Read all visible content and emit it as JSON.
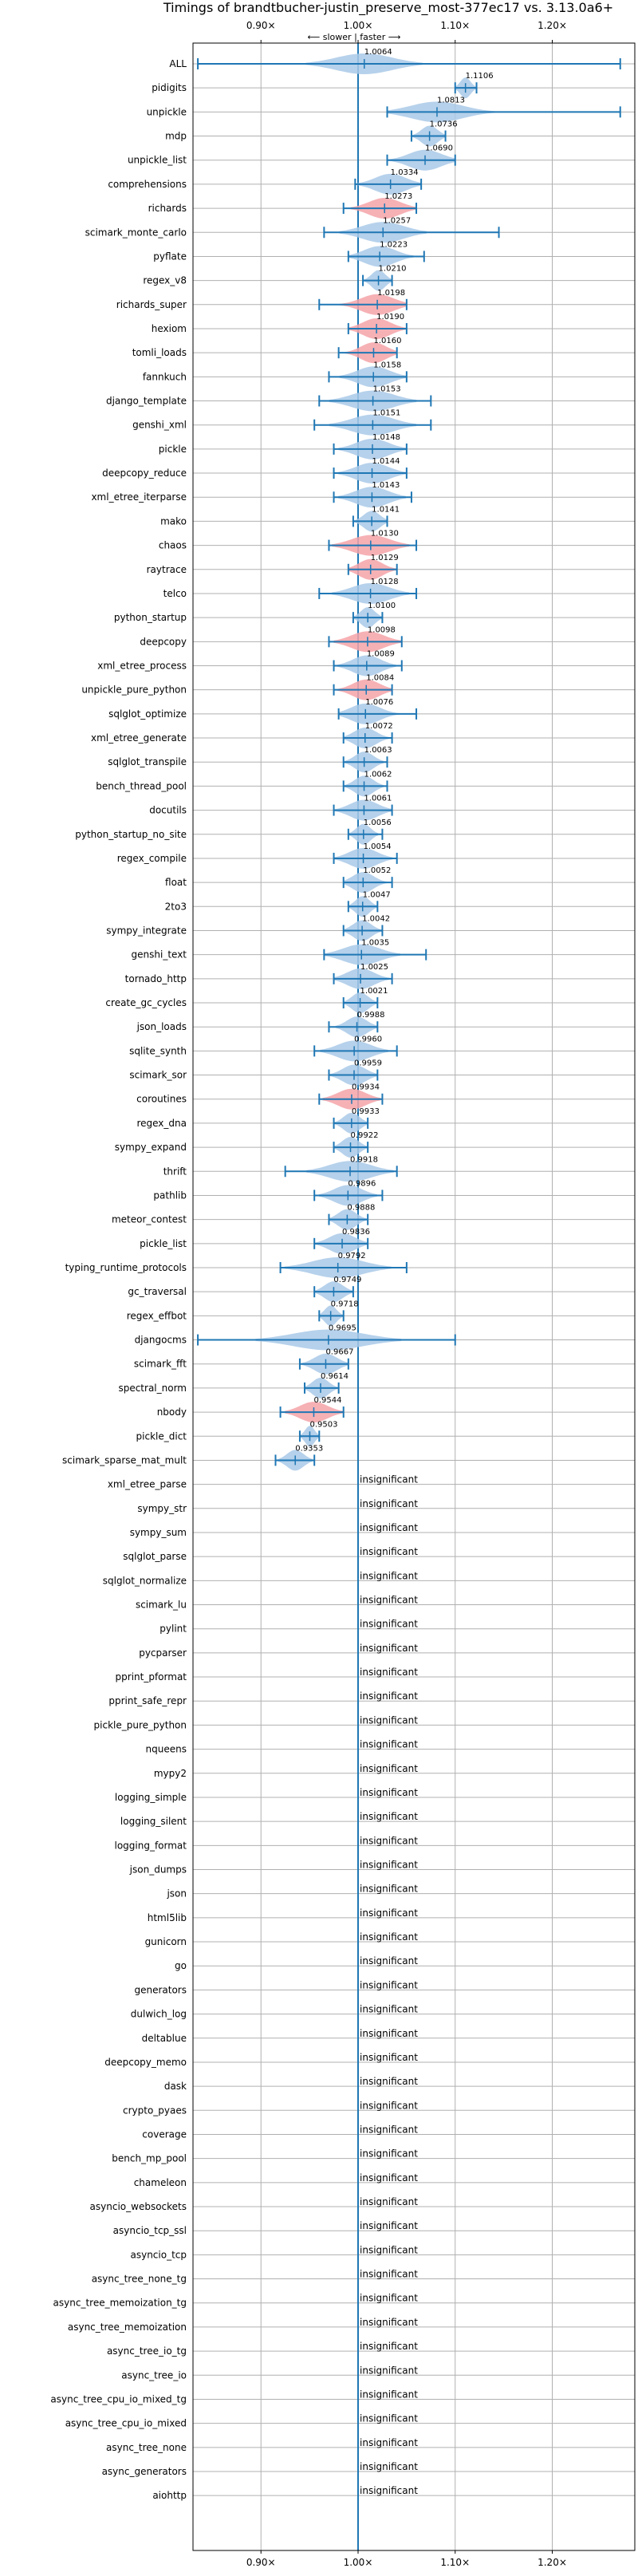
{
  "chart_data": {
    "type": "violin",
    "title": "Timings of brandtbucher-justin_preserve_most-377ec17 vs. 3.13.0a6+",
    "subtitle": "⟵ slower | faster ⟶",
    "xlim": [
      0.83,
      1.285
    ],
    "xticks": [
      {
        "value": 0.9,
        "label": "0.90×"
      },
      {
        "value": 1.0,
        "label": "1.00×"
      },
      {
        "value": 1.1,
        "label": "1.10×"
      },
      {
        "value": 1.2,
        "label": "1.20×"
      }
    ],
    "grid": true,
    "reference_line": 1.0,
    "insignificant_text": "insignificant",
    "colors": {
      "faster": "#a9c9e8",
      "slower": "#f4a3a8",
      "whisker": "#1f77b4",
      "grid": "#b0b0b0"
    },
    "benchmarks": [
      {
        "name": "ALL",
        "value": 1.0064,
        "label": "1.0064",
        "min": 0.835,
        "max": 1.27,
        "spread": 0.06,
        "slower": false
      },
      {
        "name": "pidigits",
        "value": 1.1106,
        "label": "1.1106",
        "min": 1.1,
        "max": 1.122,
        "spread": 0.012,
        "slower": false
      },
      {
        "name": "unpickle",
        "value": 1.0813,
        "label": "1.0813",
        "min": 1.03,
        "max": 1.27,
        "spread": 0.06,
        "slower": false
      },
      {
        "name": "mdp",
        "value": 1.0736,
        "label": "1.0736",
        "min": 1.055,
        "max": 1.09,
        "spread": 0.02,
        "slower": false
      },
      {
        "name": "unpickle_list",
        "value": 1.069,
        "label": "1.0690",
        "min": 1.03,
        "max": 1.1,
        "spread": 0.04,
        "slower": false
      },
      {
        "name": "comprehensions",
        "value": 1.0334,
        "label": "1.0334",
        "min": 0.997,
        "max": 1.065,
        "spread": 0.035,
        "slower": false
      },
      {
        "name": "richards",
        "value": 1.0273,
        "label": "1.0273",
        "min": 0.985,
        "max": 1.06,
        "spread": 0.035,
        "slower": true
      },
      {
        "name": "scimark_monte_carlo",
        "value": 1.0257,
        "label": "1.0257",
        "min": 0.965,
        "max": 1.145,
        "spread": 0.045,
        "slower": false
      },
      {
        "name": "pyflate",
        "value": 1.0223,
        "label": "1.0223",
        "min": 0.99,
        "max": 1.068,
        "spread": 0.035,
        "slower": false
      },
      {
        "name": "regex_v8",
        "value": 1.021,
        "label": "1.0210",
        "min": 1.005,
        "max": 1.035,
        "spread": 0.015,
        "slower": false
      },
      {
        "name": "richards_super",
        "value": 1.0198,
        "label": "1.0198",
        "min": 0.96,
        "max": 1.05,
        "spread": 0.04,
        "slower": true
      },
      {
        "name": "hexiom",
        "value": 1.019,
        "label": "1.0190",
        "min": 0.99,
        "max": 1.05,
        "spread": 0.03,
        "slower": true
      },
      {
        "name": "tomli_loads",
        "value": 1.016,
        "label": "1.0160",
        "min": 0.98,
        "max": 1.04,
        "spread": 0.03,
        "slower": true
      },
      {
        "name": "fannkuch",
        "value": 1.0158,
        "label": "1.0158",
        "min": 0.97,
        "max": 1.05,
        "spread": 0.035,
        "slower": false
      },
      {
        "name": "django_template",
        "value": 1.0153,
        "label": "1.0153",
        "min": 0.96,
        "max": 1.075,
        "spread": 0.045,
        "slower": false
      },
      {
        "name": "genshi_xml",
        "value": 1.0151,
        "label": "1.0151",
        "min": 0.955,
        "max": 1.075,
        "spread": 0.045,
        "slower": false
      },
      {
        "name": "pickle",
        "value": 1.0148,
        "label": "1.0148",
        "min": 0.975,
        "max": 1.05,
        "spread": 0.035,
        "slower": false
      },
      {
        "name": "deepcopy_reduce",
        "value": 1.0144,
        "label": "1.0144",
        "min": 0.975,
        "max": 1.05,
        "spread": 0.035,
        "slower": false
      },
      {
        "name": "xml_etree_iterparse",
        "value": 1.0143,
        "label": "1.0143",
        "min": 0.975,
        "max": 1.055,
        "spread": 0.035,
        "slower": false
      },
      {
        "name": "mako",
        "value": 1.0141,
        "label": "1.0141",
        "min": 0.995,
        "max": 1.03,
        "spread": 0.02,
        "slower": false
      },
      {
        "name": "chaos",
        "value": 1.013,
        "label": "1.0130",
        "min": 0.97,
        "max": 1.06,
        "spread": 0.04,
        "slower": true
      },
      {
        "name": "raytrace",
        "value": 1.0129,
        "label": "1.0129",
        "min": 0.99,
        "max": 1.04,
        "spread": 0.03,
        "slower": true
      },
      {
        "name": "telco",
        "value": 1.0128,
        "label": "1.0128",
        "min": 0.96,
        "max": 1.06,
        "spread": 0.04,
        "slower": false
      },
      {
        "name": "python_startup",
        "value": 1.01,
        "label": "1.0100",
        "min": 0.995,
        "max": 1.025,
        "spread": 0.015,
        "slower": false
      },
      {
        "name": "deepcopy",
        "value": 1.0098,
        "label": "1.0098",
        "min": 0.97,
        "max": 1.045,
        "spread": 0.035,
        "slower": true
      },
      {
        "name": "xml_etree_process",
        "value": 1.0089,
        "label": "1.0089",
        "min": 0.975,
        "max": 1.045,
        "spread": 0.03,
        "slower": false
      },
      {
        "name": "unpickle_pure_python",
        "value": 1.0084,
        "label": "1.0084",
        "min": 0.975,
        "max": 1.035,
        "spread": 0.03,
        "slower": true
      },
      {
        "name": "sqlglot_optimize",
        "value": 1.0076,
        "label": "1.0076",
        "min": 0.98,
        "max": 1.06,
        "spread": 0.035,
        "slower": false
      },
      {
        "name": "xml_etree_generate",
        "value": 1.0072,
        "label": "1.0072",
        "min": 0.985,
        "max": 1.035,
        "spread": 0.025,
        "slower": false
      },
      {
        "name": "sqlglot_transpile",
        "value": 1.0063,
        "label": "1.0063",
        "min": 0.985,
        "max": 1.03,
        "spread": 0.02,
        "slower": false
      },
      {
        "name": "bench_thread_pool",
        "value": 1.0062,
        "label": "1.0062",
        "min": 0.985,
        "max": 1.03,
        "spread": 0.02,
        "slower": false
      },
      {
        "name": "docutils",
        "value": 1.0061,
        "label": "1.0061",
        "min": 0.975,
        "max": 1.035,
        "spread": 0.03,
        "slower": false
      },
      {
        "name": "python_startup_no_site",
        "value": 1.0056,
        "label": "1.0056",
        "min": 0.99,
        "max": 1.025,
        "spread": 0.015,
        "slower": false
      },
      {
        "name": "regex_compile",
        "value": 1.0054,
        "label": "1.0054",
        "min": 0.975,
        "max": 1.04,
        "spread": 0.03,
        "slower": false
      },
      {
        "name": "float",
        "value": 1.0052,
        "label": "1.0052",
        "min": 0.985,
        "max": 1.035,
        "spread": 0.025,
        "slower": false
      },
      {
        "name": "2to3",
        "value": 1.0047,
        "label": "1.0047",
        "min": 0.99,
        "max": 1.02,
        "spread": 0.015,
        "slower": false
      },
      {
        "name": "sympy_integrate",
        "value": 1.0042,
        "label": "1.0042",
        "min": 0.985,
        "max": 1.025,
        "spread": 0.02,
        "slower": false
      },
      {
        "name": "genshi_text",
        "value": 1.0035,
        "label": "1.0035",
        "min": 0.965,
        "max": 1.07,
        "spread": 0.04,
        "slower": false
      },
      {
        "name": "tornado_http",
        "value": 1.0025,
        "label": "1.0025",
        "min": 0.975,
        "max": 1.035,
        "spread": 0.03,
        "slower": false
      },
      {
        "name": "create_gc_cycles",
        "value": 1.0021,
        "label": "1.0021",
        "min": 0.985,
        "max": 1.02,
        "spread": 0.018,
        "slower": false
      },
      {
        "name": "json_loads",
        "value": 0.9988,
        "label": "0.9988",
        "min": 0.97,
        "max": 1.02,
        "spread": 0.022,
        "slower": false
      },
      {
        "name": "sqlite_synth",
        "value": 0.996,
        "label": "0.9960",
        "min": 0.955,
        "max": 1.04,
        "spread": 0.035,
        "slower": false
      },
      {
        "name": "scimark_sor",
        "value": 0.9959,
        "label": "0.9959",
        "min": 0.97,
        "max": 1.02,
        "spread": 0.025,
        "slower": false
      },
      {
        "name": "coroutines",
        "value": 0.9934,
        "label": "0.9934",
        "min": 0.96,
        "max": 1.025,
        "spread": 0.03,
        "slower": true
      },
      {
        "name": "regex_dna",
        "value": 0.9933,
        "label": "0.9933",
        "min": 0.975,
        "max": 1.01,
        "spread": 0.018,
        "slower": false
      },
      {
        "name": "sympy_expand",
        "value": 0.9922,
        "label": "0.9922",
        "min": 0.975,
        "max": 1.01,
        "spread": 0.018,
        "slower": false
      },
      {
        "name": "thrift",
        "value": 0.9918,
        "label": "0.9918",
        "min": 0.925,
        "max": 1.04,
        "spread": 0.045,
        "slower": false
      },
      {
        "name": "pathlib",
        "value": 0.9896,
        "label": "0.9896",
        "min": 0.955,
        "max": 1.025,
        "spread": 0.03,
        "slower": false
      },
      {
        "name": "meteor_contest",
        "value": 0.9888,
        "label": "0.9888",
        "min": 0.97,
        "max": 1.01,
        "spread": 0.02,
        "slower": false
      },
      {
        "name": "pickle_list",
        "value": 0.9836,
        "label": "0.9836",
        "min": 0.955,
        "max": 1.01,
        "spread": 0.03,
        "slower": false
      },
      {
        "name": "typing_runtime_protocols",
        "value": 0.9792,
        "label": "0.9792",
        "min": 0.92,
        "max": 1.05,
        "spread": 0.055,
        "slower": false
      },
      {
        "name": "gc_traversal",
        "value": 0.9749,
        "label": "0.9749",
        "min": 0.955,
        "max": 0.995,
        "spread": 0.02,
        "slower": false
      },
      {
        "name": "regex_effbot",
        "value": 0.9718,
        "label": "0.9718",
        "min": 0.96,
        "max": 0.985,
        "spread": 0.014,
        "slower": false
      },
      {
        "name": "djangocms",
        "value": 0.9695,
        "label": "0.9695",
        "min": 0.835,
        "max": 1.1,
        "spread": 0.075,
        "slower": false
      },
      {
        "name": "scimark_fft",
        "value": 0.9667,
        "label": "0.9667",
        "min": 0.94,
        "max": 0.99,
        "spread": 0.025,
        "slower": false
      },
      {
        "name": "spectral_norm",
        "value": 0.9614,
        "label": "0.9614",
        "min": 0.945,
        "max": 0.98,
        "spread": 0.018,
        "slower": false
      },
      {
        "name": "nbody",
        "value": 0.9544,
        "label": "0.9544",
        "min": 0.92,
        "max": 0.985,
        "spread": 0.03,
        "slower": true
      },
      {
        "name": "pickle_dict",
        "value": 0.9503,
        "label": "0.9503",
        "min": 0.94,
        "max": 0.96,
        "spread": 0.012,
        "slower": false
      },
      {
        "name": "scimark_sparse_mat_mult",
        "value": 0.9353,
        "label": "0.9353",
        "min": 0.915,
        "max": 0.955,
        "spread": 0.018,
        "slower": false
      },
      {
        "name": "xml_etree_parse",
        "insignificant": true
      },
      {
        "name": "sympy_str",
        "insignificant": true
      },
      {
        "name": "sympy_sum",
        "insignificant": true
      },
      {
        "name": "sqlglot_parse",
        "insignificant": true
      },
      {
        "name": "sqlglot_normalize",
        "insignificant": true
      },
      {
        "name": "scimark_lu",
        "insignificant": true
      },
      {
        "name": "pylint",
        "insignificant": true
      },
      {
        "name": "pycparser",
        "insignificant": true
      },
      {
        "name": "pprint_pformat",
        "insignificant": true
      },
      {
        "name": "pprint_safe_repr",
        "insignificant": true
      },
      {
        "name": "pickle_pure_python",
        "insignificant": true
      },
      {
        "name": "nqueens",
        "insignificant": true
      },
      {
        "name": "mypy2",
        "insignificant": true
      },
      {
        "name": "logging_simple",
        "insignificant": true
      },
      {
        "name": "logging_silent",
        "insignificant": true
      },
      {
        "name": "logging_format",
        "insignificant": true
      },
      {
        "name": "json_dumps",
        "insignificant": true
      },
      {
        "name": "json",
        "insignificant": true
      },
      {
        "name": "html5lib",
        "insignificant": true
      },
      {
        "name": "gunicorn",
        "insignificant": true
      },
      {
        "name": "go",
        "insignificant": true
      },
      {
        "name": "generators",
        "insignificant": true
      },
      {
        "name": "dulwich_log",
        "insignificant": true
      },
      {
        "name": "deltablue",
        "insignificant": true
      },
      {
        "name": "deepcopy_memo",
        "insignificant": true
      },
      {
        "name": "dask",
        "insignificant": true
      },
      {
        "name": "crypto_pyaes",
        "insignificant": true
      },
      {
        "name": "coverage",
        "insignificant": true
      },
      {
        "name": "bench_mp_pool",
        "insignificant": true
      },
      {
        "name": "chameleon",
        "insignificant": true
      },
      {
        "name": "asyncio_websockets",
        "insignificant": true
      },
      {
        "name": "asyncio_tcp_ssl",
        "insignificant": true
      },
      {
        "name": "asyncio_tcp",
        "insignificant": true
      },
      {
        "name": "async_tree_none_tg",
        "insignificant": true
      },
      {
        "name": "async_tree_memoization_tg",
        "insignificant": true
      },
      {
        "name": "async_tree_memoization",
        "insignificant": true
      },
      {
        "name": "async_tree_io_tg",
        "insignificant": true
      },
      {
        "name": "async_tree_io",
        "insignificant": true
      },
      {
        "name": "async_tree_cpu_io_mixed_tg",
        "insignificant": true
      },
      {
        "name": "async_tree_cpu_io_mixed",
        "insignificant": true
      },
      {
        "name": "async_tree_none",
        "insignificant": true
      },
      {
        "name": "async_generators",
        "insignificant": true
      },
      {
        "name": "aiohttp",
        "insignificant": true
      }
    ]
  }
}
